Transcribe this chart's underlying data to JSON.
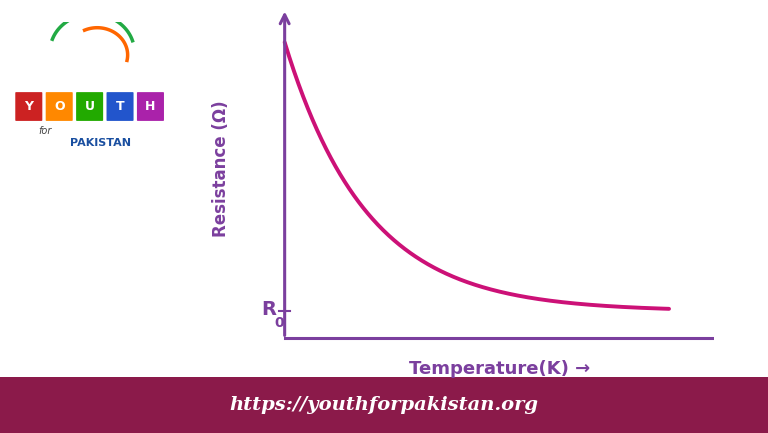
{
  "curve_color": "#cc1177",
  "axis_color": "#7b3f9e",
  "ylabel": "Resistance (Ω)",
  "xlabel": "Temperature(K) →",
  "r0_label": "R",
  "r0_sub": "0",
  "background_color": "#ffffff",
  "footer_bg_color": "#8b1a4a",
  "footer_text": "https://youthforpakistan.org",
  "footer_text_color": "#ffffff",
  "x_start": 1.0,
  "x_end": 9.5,
  "curve_a": 8.0,
  "curve_b": 0.55,
  "r0_y": 0.5,
  "ylim_top": 9.5,
  "xlim_right": 10.5,
  "xlim_left": -0.2,
  "ylim_bottom": -0.3
}
